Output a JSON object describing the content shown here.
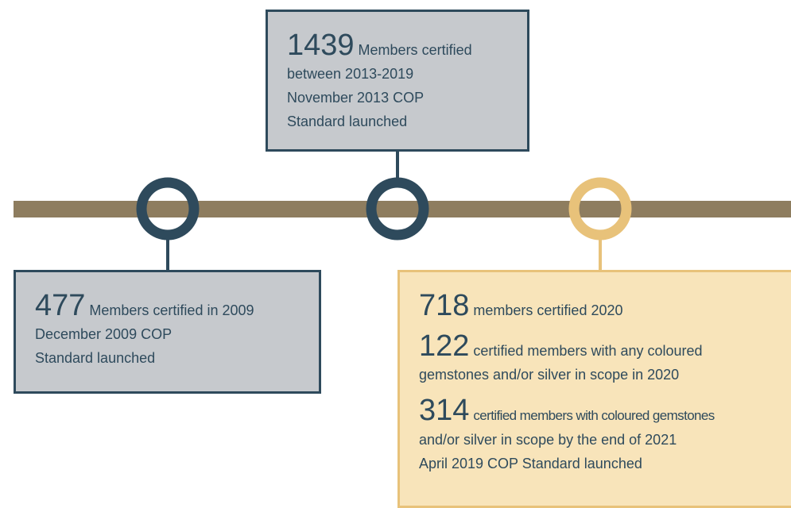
{
  "boxes": [
    {
      "paragraphs": [
        {
          "number": "477",
          "lines": [
            "Members certified in 2009",
            "December 2009 COP",
            "Standard launched"
          ]
        }
      ]
    },
    {
      "paragraphs": [
        {
          "number": "1439",
          "lines": [
            "Members certified",
            "between 2013-2019",
            "November 2013 COP",
            "Standard launched"
          ]
        }
      ]
    },
    {
      "paragraphs": [
        {
          "number": "718",
          "lines": [
            "members certified 2020"
          ]
        },
        {
          "number": "122",
          "lines": [
            "certified members with any coloured",
            "gemstones and/or silver in scope in 2020"
          ]
        },
        {
          "number": "314",
          "lines": [
            "certified members with coloured gemstones",
            "and/or silver in scope by the end of 2021",
            "April 2019 COP Standard launched"
          ]
        }
      ]
    }
  ]
}
